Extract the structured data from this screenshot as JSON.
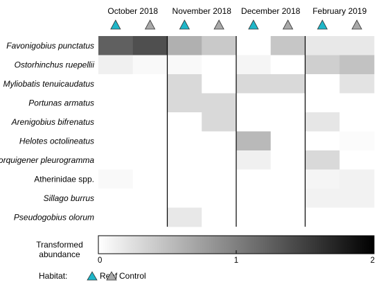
{
  "chart_data": {
    "type": "heatmap",
    "months": [
      "October 2018",
      "November 2018",
      "December 2018",
      "February 2019"
    ],
    "habitats_order": [
      "Reef",
      "Control"
    ],
    "species": [
      {
        "name": "Favonigobius punctatus",
        "italic": true
      },
      {
        "name": "Ostorhinchus ruepellii",
        "italic": true
      },
      {
        "name": "Myliobatis tenuicaudatus",
        "italic": true
      },
      {
        "name": "Portunas armatus",
        "italic": true
      },
      {
        "name": "Arenigobius bifrenatus",
        "italic": true
      },
      {
        "name": "Helotes octolineatus",
        "italic": true
      },
      {
        "name": "Torquigener pleurogramma",
        "italic": true
      },
      {
        "name": "Atherinidae spp.",
        "italic": false
      },
      {
        "name": "Sillago burrus",
        "italic": true
      },
      {
        "name": "Pseudogobius olorum",
        "italic": true
      }
    ],
    "columns": [
      "Oct 2018 Reef",
      "Oct 2018 Control",
      "Nov 2018 Reef",
      "Nov 2018 Control",
      "Dec 2018 Reef",
      "Dec 2018 Control",
      "Feb 2019 Reef",
      "Feb 2019 Control"
    ],
    "values": [
      [
        1.25,
        1.38,
        0.62,
        0.42,
        0.0,
        0.45,
        0.18,
        0.18
      ],
      [
        0.12,
        0.05,
        0.05,
        0.0,
        0.08,
        0.0,
        0.38,
        0.48
      ],
      [
        0.0,
        0.0,
        0.3,
        0.0,
        0.3,
        0.3,
        0.0,
        0.22
      ],
      [
        0.0,
        0.0,
        0.3,
        0.3,
        0.0,
        0.0,
        0.0,
        0.0
      ],
      [
        0.0,
        0.0,
        0.0,
        0.3,
        0.0,
        0.0,
        0.2,
        0.0
      ],
      [
        0.0,
        0.0,
        0.0,
        0.0,
        0.55,
        0.0,
        0.0,
        0.03
      ],
      [
        0.0,
        0.0,
        0.0,
        0.0,
        0.12,
        0.0,
        0.3,
        0.0
      ],
      [
        0.05,
        0.0,
        0.0,
        0.0,
        0.0,
        0.0,
        0.08,
        0.1
      ],
      [
        0.0,
        0.0,
        0.0,
        0.0,
        0.0,
        0.0,
        0.1,
        0.1
      ],
      [
        0.0,
        0.0,
        0.18,
        0.0,
        0.0,
        0.0,
        0.0,
        0.0
      ]
    ],
    "colorbar": {
      "label_line1": "Transformed",
      "label_line2": "abundance",
      "range": [
        0,
        2
      ],
      "ticks": [
        "0",
        "1",
        "2"
      ]
    },
    "colors": {
      "low": "#ffffff",
      "high": "#000000",
      "reef": "#1fb6c8",
      "control": "#a9a9a9"
    },
    "legend": {
      "title": "Habitat:",
      "items": [
        "Reef",
        "Control"
      ],
      "placement": "bottom-left"
    }
  }
}
